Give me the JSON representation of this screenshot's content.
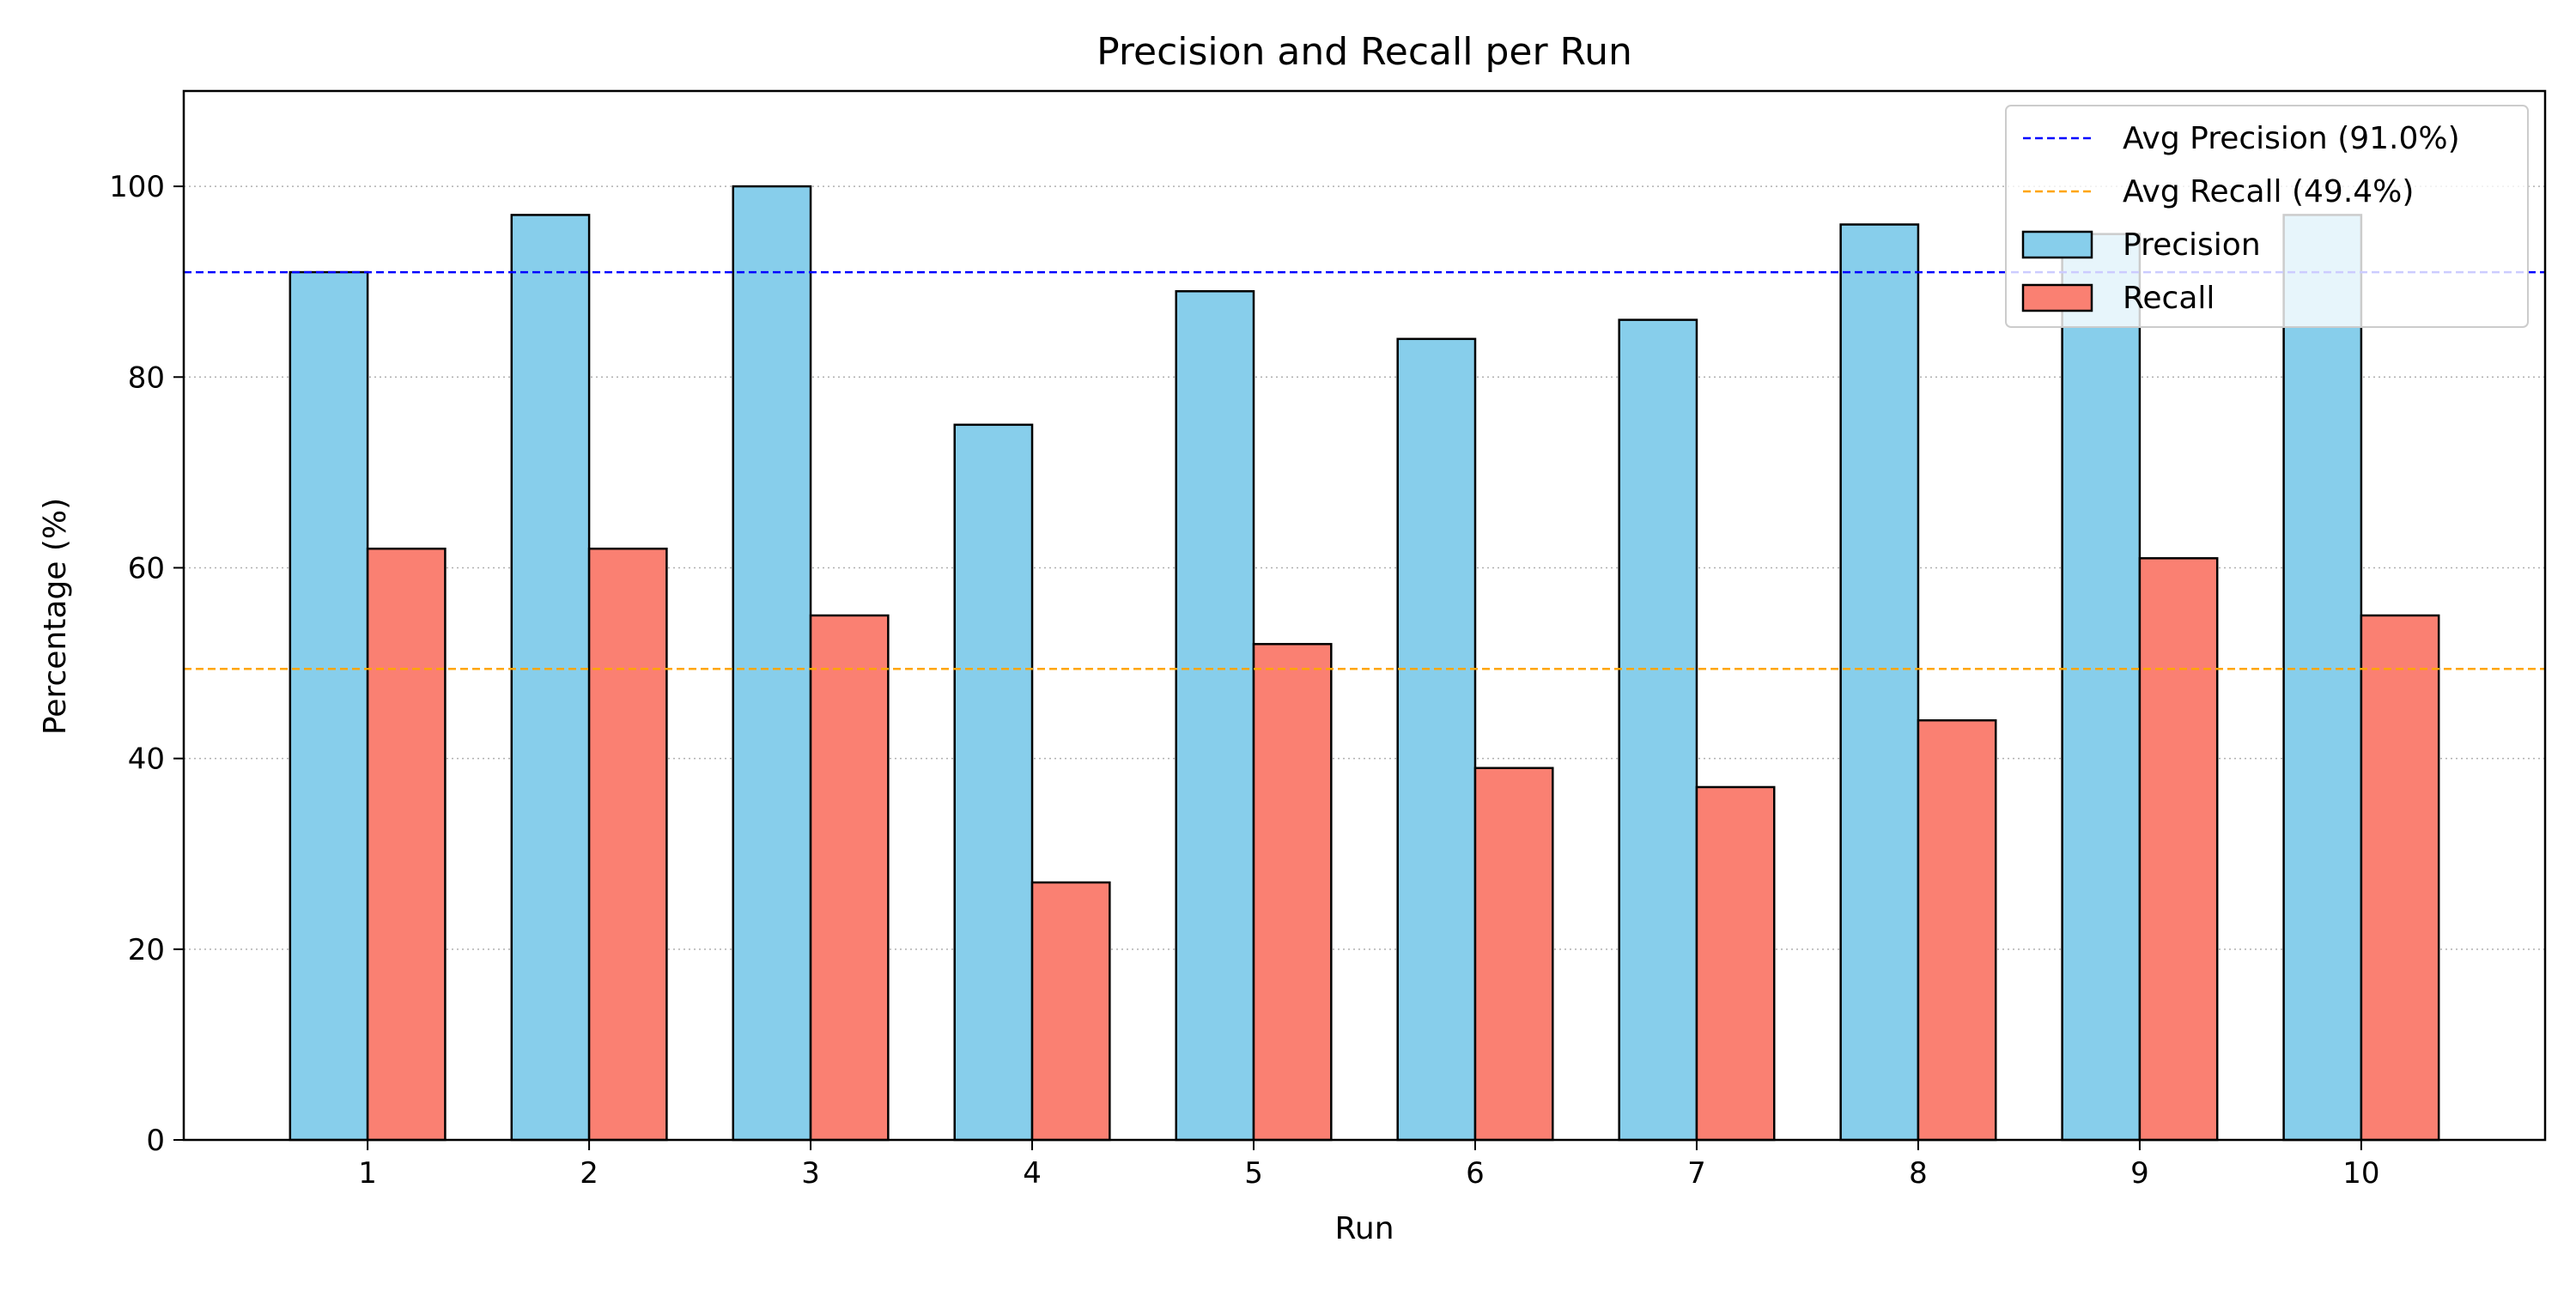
{
  "chart_data": {
    "type": "bar",
    "title": "Precision and Recall per Run",
    "xlabel": "Run",
    "ylabel": "Percentage (%)",
    "categories": [
      "1",
      "2",
      "3",
      "4",
      "5",
      "6",
      "7",
      "8",
      "9",
      "10"
    ],
    "series": [
      {
        "name": "Precision",
        "color": "#87CEEB",
        "values": [
          91,
          97,
          100,
          75,
          89,
          84,
          86,
          96,
          95,
          97
        ]
      },
      {
        "name": "Recall",
        "color": "#FA8072",
        "values": [
          62,
          62,
          55,
          27,
          52,
          39,
          37,
          44,
          61,
          55
        ]
      }
    ],
    "reference_lines": [
      {
        "label": "Avg Precision (91.0%)",
        "value": 91.0,
        "color": "#0000FF",
        "style": "dashed"
      },
      {
        "label": "Avg Recall (49.4%)",
        "value": 49.4,
        "color": "#FFA500",
        "style": "dashed"
      }
    ],
    "ylim": [
      0,
      110
    ],
    "yticks": [
      0,
      20,
      40,
      60,
      80,
      100
    ],
    "grid": "y-dotted",
    "legend_position": "top-right"
  }
}
